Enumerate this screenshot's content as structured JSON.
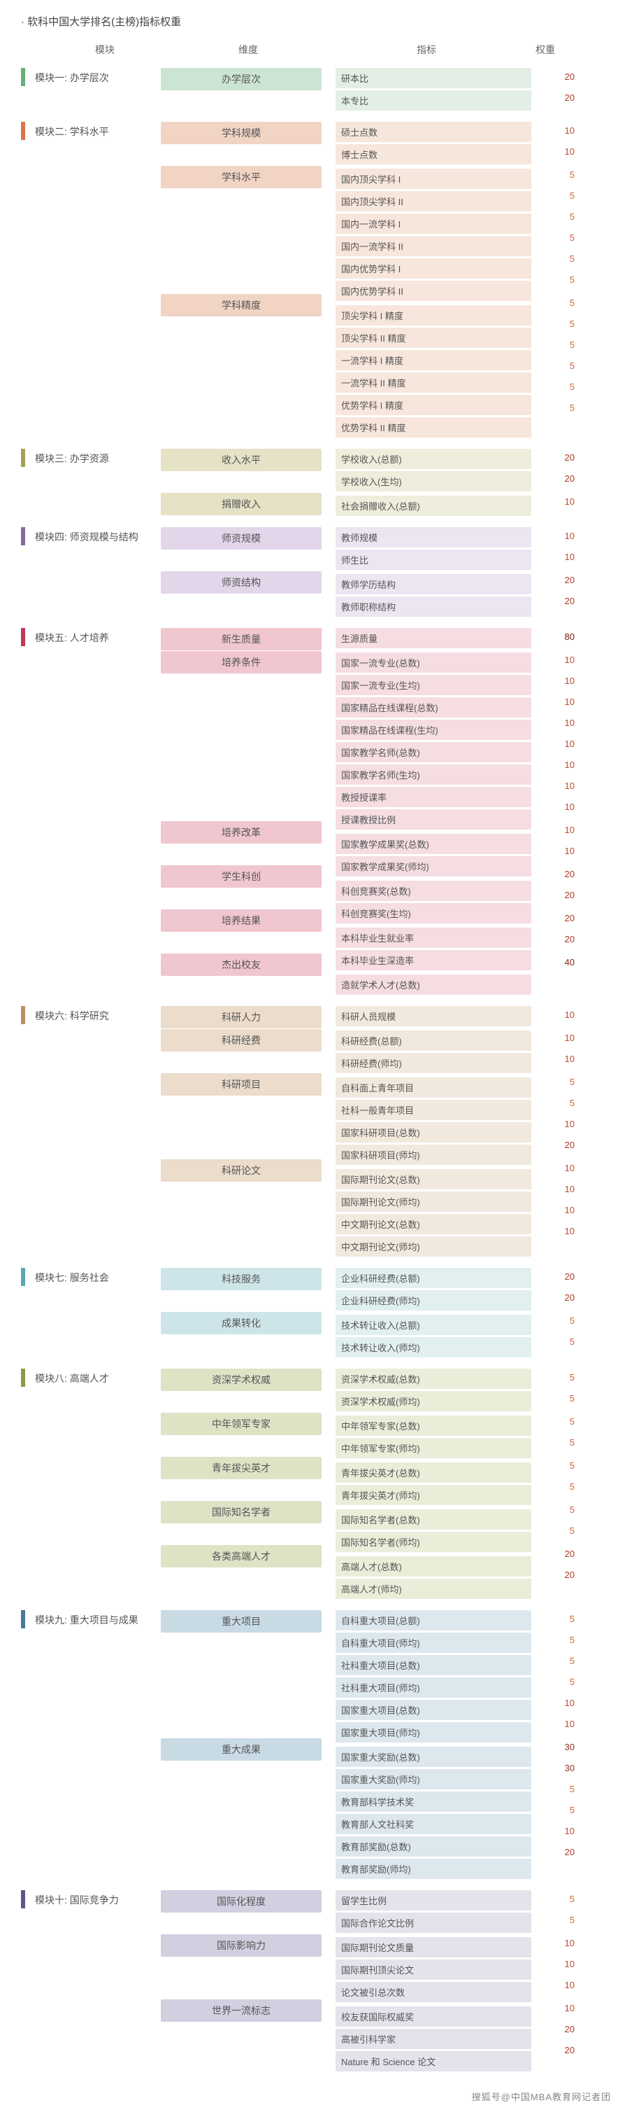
{
  "title": "· 软科中国大学排名(主榜)指标权重",
  "col_headers": {
    "module": "模块",
    "dimension": "维度",
    "indicator": "指标",
    "weight": "权重"
  },
  "footer": "搜狐号@中国MBA教育网记者团",
  "weight_colors": {
    "5": "#cc6633",
    "10": "#b84e2e",
    "20": "#a83a24",
    "30": "#98301e",
    "40": "#882618",
    "80": "#701a0e"
  },
  "colors": {
    "m1": {
      "bar": "#6aad7a",
      "dim": "#cce5d2",
      "ind": "#e3efe5"
    },
    "m2": {
      "bar": "#d9734a",
      "dim": "#f2d4c4",
      "ind": "#f7e6db"
    },
    "m3": {
      "bar": "#a8a05a",
      "dim": "#e5e2c5",
      "ind": "#efeddb"
    },
    "m4": {
      "bar": "#8a6a9f",
      "dim": "#e3d6ea",
      "ind": "#ede5f1"
    },
    "m5": {
      "bar": "#c0395a",
      "dim": "#f0c6cf",
      "ind": "#f5dde2"
    },
    "m6": {
      "bar": "#b89068",
      "dim": "#ebdccb",
      "ind": "#f2e9de"
    },
    "m7": {
      "bar": "#5aa8b0",
      "dim": "#cde5e8",
      "ind": "#e1efef"
    },
    "m8": {
      "bar": "#8a9a4a",
      "dim": "#dde3c5",
      "ind": "#eaeed9"
    },
    "m9": {
      "bar": "#4a7a9a",
      "dim": "#c8dbe5",
      "ind": "#dde8ee"
    },
    "m10": {
      "bar": "#5a5a8a",
      "dim": "#d0d0e0",
      "ind": "#e3e3ec"
    }
  },
  "modules": [
    {
      "id": "m1",
      "label": "模块一: 办学层次",
      "dims": [
        {
          "name": "办学层次",
          "inds": [
            {
              "name": "研本比",
              "w": 20
            },
            {
              "name": "本专比",
              "w": 20
            }
          ]
        }
      ]
    },
    {
      "id": "m2",
      "label": "模块二: 学科水平",
      "dims": [
        {
          "name": "学科规模",
          "inds": [
            {
              "name": "硕士点数",
              "w": 10
            },
            {
              "name": "博士点数",
              "w": 10
            }
          ]
        },
        {
          "name": "学科水平",
          "inds": [
            {
              "name": "国内顶尖学科 I",
              "w": 5
            },
            {
              "name": "国内顶尖学科 II",
              "w": 5
            },
            {
              "name": "国内一流学科 I",
              "w": 5
            },
            {
              "name": "国内一流学科 II",
              "w": 5
            },
            {
              "name": "国内优势学科 I",
              "w": 5
            },
            {
              "name": "国内优势学科 II",
              "w": 5
            }
          ]
        },
        {
          "name": "学科精度",
          "inds": [
            {
              "name": "顶尖学科 I 精度",
              "w": 5
            },
            {
              "name": "顶尖学科 II 精度",
              "w": 5
            },
            {
              "name": "一流学科 I 精度",
              "w": 5
            },
            {
              "name": "一流学科 II 精度",
              "w": 5
            },
            {
              "name": "优势学科 I 精度",
              "w": 5
            },
            {
              "name": "优势学科 II 精度",
              "w": 5
            }
          ]
        }
      ]
    },
    {
      "id": "m3",
      "label": "模块三: 办学资源",
      "dims": [
        {
          "name": "收入水平",
          "inds": [
            {
              "name": "学校收入(总额)",
              "w": 20
            },
            {
              "name": "学校收入(生均)",
              "w": 20
            }
          ]
        },
        {
          "name": "捐赠收入",
          "inds": [
            {
              "name": "社会捐赠收入(总额)",
              "w": 10
            }
          ]
        }
      ]
    },
    {
      "id": "m4",
      "label": "模块四: 师资规模与结构",
      "dims": [
        {
          "name": "师资规模",
          "inds": [
            {
              "name": "教师规模",
              "w": 10
            },
            {
              "name": "师生比",
              "w": 10
            }
          ]
        },
        {
          "name": "师资结构",
          "inds": [
            {
              "name": "教师学历结构",
              "w": 20
            },
            {
              "name": "教师职称结构",
              "w": 20
            }
          ]
        }
      ]
    },
    {
      "id": "m5",
      "label": "模块五: 人才培养",
      "dims": [
        {
          "name": "新生质量",
          "inds": [
            {
              "name": "生源质量",
              "w": 80
            }
          ]
        },
        {
          "name": "培养条件",
          "inds": [
            {
              "name": "国家一流专业(总数)",
              "w": 10
            },
            {
              "name": "国家一流专业(生均)",
              "w": 10
            },
            {
              "name": "国家精品在线课程(总数)",
              "w": 10
            },
            {
              "name": "国家精品在线课程(生均)",
              "w": 10
            },
            {
              "name": "国家教学名师(总数)",
              "w": 10
            },
            {
              "name": "国家教学名师(生均)",
              "w": 10
            },
            {
              "name": "教授授课率",
              "w": 10
            },
            {
              "name": "授课教授比例",
              "w": 10
            }
          ]
        },
        {
          "name": "培养改革",
          "inds": [
            {
              "name": "国家教学成果奖(总数)",
              "w": 10
            },
            {
              "name": "国家教学成果奖(师均)",
              "w": 10
            }
          ]
        },
        {
          "name": "学生科创",
          "inds": [
            {
              "name": "科创竞赛奖(总数)",
              "w": 20
            },
            {
              "name": "科创竞赛奖(生均)",
              "w": 20
            }
          ]
        },
        {
          "name": "培养结果",
          "inds": [
            {
              "name": "本科毕业生就业率",
              "w": 20
            },
            {
              "name": "本科毕业生深造率",
              "w": 20
            }
          ]
        },
        {
          "name": "杰出校友",
          "inds": [
            {
              "name": "造就学术人才(总数)",
              "w": 40
            }
          ]
        }
      ]
    },
    {
      "id": "m6",
      "label": "模块六: 科学研究",
      "dims": [
        {
          "name": "科研人力",
          "inds": [
            {
              "name": "科研人员规模",
              "w": 10
            }
          ]
        },
        {
          "name": "科研经费",
          "inds": [
            {
              "name": "科研经费(总额)",
              "w": 10
            },
            {
              "name": "科研经费(师均)",
              "w": 10
            }
          ]
        },
        {
          "name": "科研项目",
          "inds": [
            {
              "name": "自科面上青年项目",
              "w": 5
            },
            {
              "name": "社科一般青年项目",
              "w": 5
            },
            {
              "name": "国家科研项目(总数)",
              "w": 10
            },
            {
              "name": "国家科研项目(师均)",
              "w": 20
            }
          ]
        },
        {
          "name": "科研论文",
          "inds": [
            {
              "name": "国际期刊论文(总数)",
              "w": 10
            },
            {
              "name": "国际期刊论文(师均)",
              "w": 10
            },
            {
              "name": "中文期刊论文(总数)",
              "w": 10
            },
            {
              "name": "中文期刊论文(师均)",
              "w": 10
            }
          ]
        }
      ]
    },
    {
      "id": "m7",
      "label": "模块七: 服务社会",
      "dims": [
        {
          "name": "科技服务",
          "inds": [
            {
              "name": "企业科研经费(总额)",
              "w": 20
            },
            {
              "name": "企业科研经费(师均)",
              "w": 20
            }
          ]
        },
        {
          "name": "成果转化",
          "inds": [
            {
              "name": "技术转让收入(总额)",
              "w": 5
            },
            {
              "name": "技术转让收入(师均)",
              "w": 5
            }
          ]
        }
      ]
    },
    {
      "id": "m8",
      "label": "模块八: 高端人才",
      "dims": [
        {
          "name": "资深学术权威",
          "inds": [
            {
              "name": "资深学术权威(总数)",
              "w": 5
            },
            {
              "name": "资深学术权威(师均)",
              "w": 5
            }
          ]
        },
        {
          "name": "中年领军专家",
          "inds": [
            {
              "name": "中年领军专家(总数)",
              "w": 5
            },
            {
              "name": "中年领军专家(师均)",
              "w": 5
            }
          ]
        },
        {
          "name": "青年拔尖英才",
          "inds": [
            {
              "name": "青年拔尖英才(总数)",
              "w": 5
            },
            {
              "name": "青年拔尖英才(师均)",
              "w": 5
            }
          ]
        },
        {
          "name": "国际知名学者",
          "inds": [
            {
              "name": "国际知名学者(总数)",
              "w": 5
            },
            {
              "name": "国际知名学者(师均)",
              "w": 5
            }
          ]
        },
        {
          "name": "各类高端人才",
          "inds": [
            {
              "name": "高端人才(总数)",
              "w": 20
            },
            {
              "name": "高端人才(师均)",
              "w": 20
            }
          ]
        }
      ]
    },
    {
      "id": "m9",
      "label": "模块九: 重大项目与成果",
      "dims": [
        {
          "name": "重大项目",
          "inds": [
            {
              "name": "自科重大项目(总额)",
              "w": 5
            },
            {
              "name": "自科重大项目(师均)",
              "w": 5
            },
            {
              "name": "社科重大项目(总数)",
              "w": 5
            },
            {
              "name": "社科重大项目(师均)",
              "w": 5
            },
            {
              "name": "国家重大项目(总数)",
              "w": 10
            },
            {
              "name": "国家重大项目(师均)",
              "w": 10
            }
          ]
        },
        {
          "name": "重大成果",
          "inds": [
            {
              "name": "国家重大奖励(总数)",
              "w": 30
            },
            {
              "name": "国家重大奖励(师均)",
              "w": 30
            },
            {
              "name": "教育部科学技术奖",
              "w": 5
            },
            {
              "name": "教育部人文社科奖",
              "w": 5
            },
            {
              "name": "教育部奖励(总数)",
              "w": 10
            },
            {
              "name": "教育部奖励(师均)",
              "w": 20
            }
          ]
        }
      ]
    },
    {
      "id": "m10",
      "label": "模块十: 国际竞争力",
      "dims": [
        {
          "name": "国际化程度",
          "inds": [
            {
              "name": "留学生比例",
              "w": 5
            },
            {
              "name": "国际合作论文比例",
              "w": 5
            }
          ]
        },
        {
          "name": "国际影响力",
          "inds": [
            {
              "name": "国际期刊论文质量",
              "w": 10
            },
            {
              "name": "国际期刊顶尖论文",
              "w": 10
            },
            {
              "name": "论文被引总次数",
              "w": 10
            }
          ]
        },
        {
          "name": "世界一流标志",
          "inds": [
            {
              "name": "校友获国际权威奖",
              "w": 10
            },
            {
              "name": "高被引科学家",
              "w": 20
            },
            {
              "name": "Nature 和 Science 论文",
              "w": 20
            }
          ]
        }
      ]
    }
  ]
}
